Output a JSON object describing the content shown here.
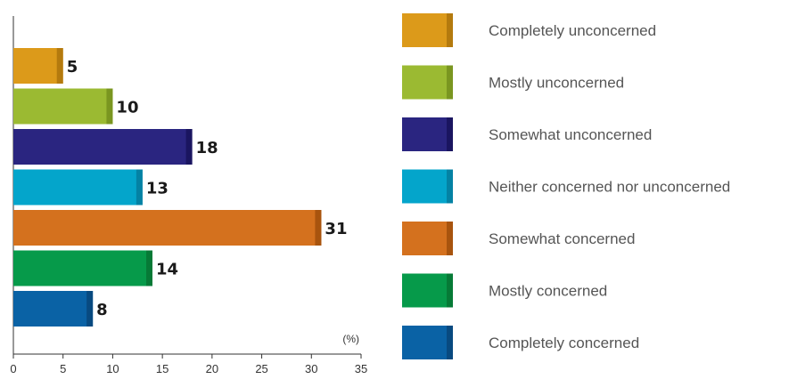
{
  "chart_data": {
    "type": "bar",
    "orientation": "horizontal",
    "categories": [
      "Completely unconcerned",
      "Mostly unconcerned",
      "Somewhat unconcerned",
      "Neither concerned nor unconcerned",
      "Somewhat concerned",
      "Mostly concerned",
      "Completely concerned"
    ],
    "values": [
      5,
      10,
      18,
      13,
      31,
      14,
      8
    ],
    "colors": [
      "#dc9a1a",
      "#9bba32",
      "#2a2580",
      "#04a5cb",
      "#d4711e",
      "#069a4a",
      "#0a62a5"
    ],
    "shade_colors": [
      "#b47a0e",
      "#7a9620",
      "#1a1560",
      "#0482a4",
      "#a8540e",
      "#067a36",
      "#084a80"
    ],
    "unit": "(%)",
    "xlim": [
      0,
      35
    ],
    "xticks": [
      0,
      5,
      10,
      15,
      20,
      25,
      30,
      35
    ],
    "grid": false,
    "legend_position": "right"
  }
}
